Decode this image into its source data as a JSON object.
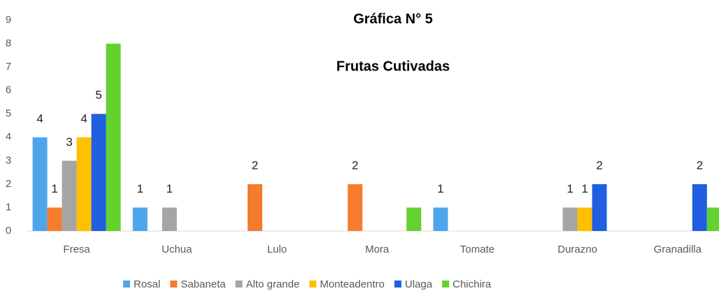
{
  "chart_data": {
    "type": "bar",
    "title": "Gráfica N° 5",
    "subtitle": "Frutas Cutivadas",
    "categories": [
      "Fresa",
      "Uchua",
      "Lulo",
      "Mora",
      "Tomate",
      "Durazno",
      "Granadilla"
    ],
    "series": [
      {
        "name": "Rosal",
        "color": "#4ea5ec",
        "show_labels": true,
        "values": [
          4,
          1,
          null,
          null,
          1,
          null,
          null
        ]
      },
      {
        "name": "Sabaneta",
        "color": "#f57c2e",
        "show_labels": true,
        "values": [
          1,
          null,
          2,
          2,
          null,
          null,
          null
        ]
      },
      {
        "name": "Alto grande",
        "color": "#a5a5a5",
        "show_labels": true,
        "values": [
          3,
          1,
          null,
          null,
          null,
          1,
          null
        ]
      },
      {
        "name": "Monteadentro",
        "color": "#ffc000",
        "show_labels": true,
        "values": [
          4,
          null,
          null,
          null,
          null,
          1,
          null
        ]
      },
      {
        "name": "Ulaga",
        "color": "#1f5fe0",
        "show_labels": true,
        "values": [
          5,
          null,
          null,
          null,
          null,
          2,
          2
        ]
      },
      {
        "name": "Chichira",
        "color": "#63d12e",
        "show_labels": false,
        "values": [
          8,
          null,
          null,
          1,
          null,
          null,
          1
        ]
      }
    ],
    "ylim": [
      0,
      9
    ],
    "yticks": [
      0,
      1,
      2,
      3,
      4,
      5,
      6,
      7,
      8,
      9
    ],
    "grid": false,
    "legend": "bottom"
  }
}
